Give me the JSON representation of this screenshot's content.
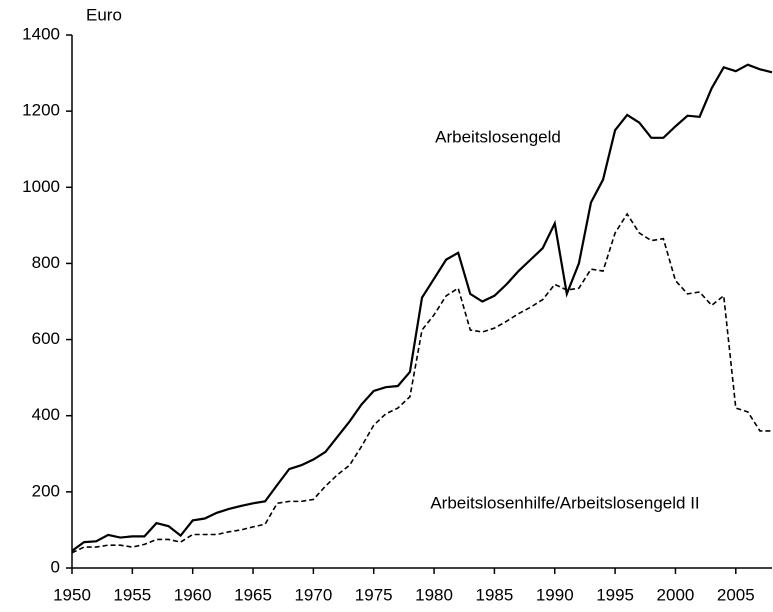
{
  "chart_data": {
    "type": "line",
    "y_label": "Euro",
    "x": [
      1950,
      1951,
      1952,
      1953,
      1954,
      1955,
      1956,
      1957,
      1958,
      1959,
      1960,
      1961,
      1962,
      1963,
      1964,
      1965,
      1966,
      1967,
      1968,
      1969,
      1970,
      1971,
      1972,
      1973,
      1974,
      1975,
      1976,
      1977,
      1978,
      1979,
      1980,
      1981,
      1982,
      1983,
      1984,
      1985,
      1986,
      1987,
      1988,
      1989,
      1990,
      1991,
      1992,
      1993,
      1994,
      1995,
      1996,
      1997,
      1998,
      1999,
      2000,
      2001,
      2002,
      2003,
      2004,
      2005,
      2006,
      2007,
      2008
    ],
    "series": [
      {
        "name": "Arbeitslosengeld",
        "color": "#000000",
        "style": "solid",
        "values": [
          45,
          68,
          70,
          87,
          80,
          83,
          83,
          118,
          110,
          85,
          125,
          130,
          145,
          155,
          163,
          170,
          175,
          218,
          260,
          270,
          285,
          305,
          345,
          385,
          430,
          465,
          475,
          478,
          515,
          710,
          760,
          810,
          828,
          720,
          700,
          715,
          745,
          780,
          810,
          840,
          905,
          720,
          800,
          960,
          1020,
          1150,
          1190,
          1170,
          1130,
          1130,
          1160,
          1188,
          1185,
          1260,
          1315,
          1305,
          1322,
          1310,
          1302
        ]
      },
      {
        "name": "Arbeitslosenhilfe/Arbeitslosengeld II",
        "color": "#000000",
        "style": "dashed",
        "values": [
          40,
          55,
          55,
          60,
          60,
          55,
          62,
          75,
          75,
          68,
          88,
          88,
          88,
          95,
          100,
          108,
          115,
          170,
          175,
          175,
          180,
          215,
          245,
          270,
          320,
          375,
          405,
          420,
          450,
          625,
          665,
          715,
          735,
          625,
          620,
          630,
          648,
          668,
          685,
          705,
          745,
          730,
          735,
          785,
          780,
          880,
          930,
          880,
          860,
          865,
          755,
          720,
          725,
          690,
          715,
          420,
          410,
          360,
          360
        ]
      }
    ],
    "xlim": [
      1950,
      2008
    ],
    "xticks": [
      1950,
      1955,
      1960,
      1965,
      1970,
      1975,
      1980,
      1985,
      1990,
      1995,
      2000,
      2005
    ],
    "ylim": [
      0,
      1400
    ],
    "yticks": [
      0,
      200,
      400,
      600,
      800,
      1000,
      1200,
      1400
    ],
    "grid": false
  }
}
